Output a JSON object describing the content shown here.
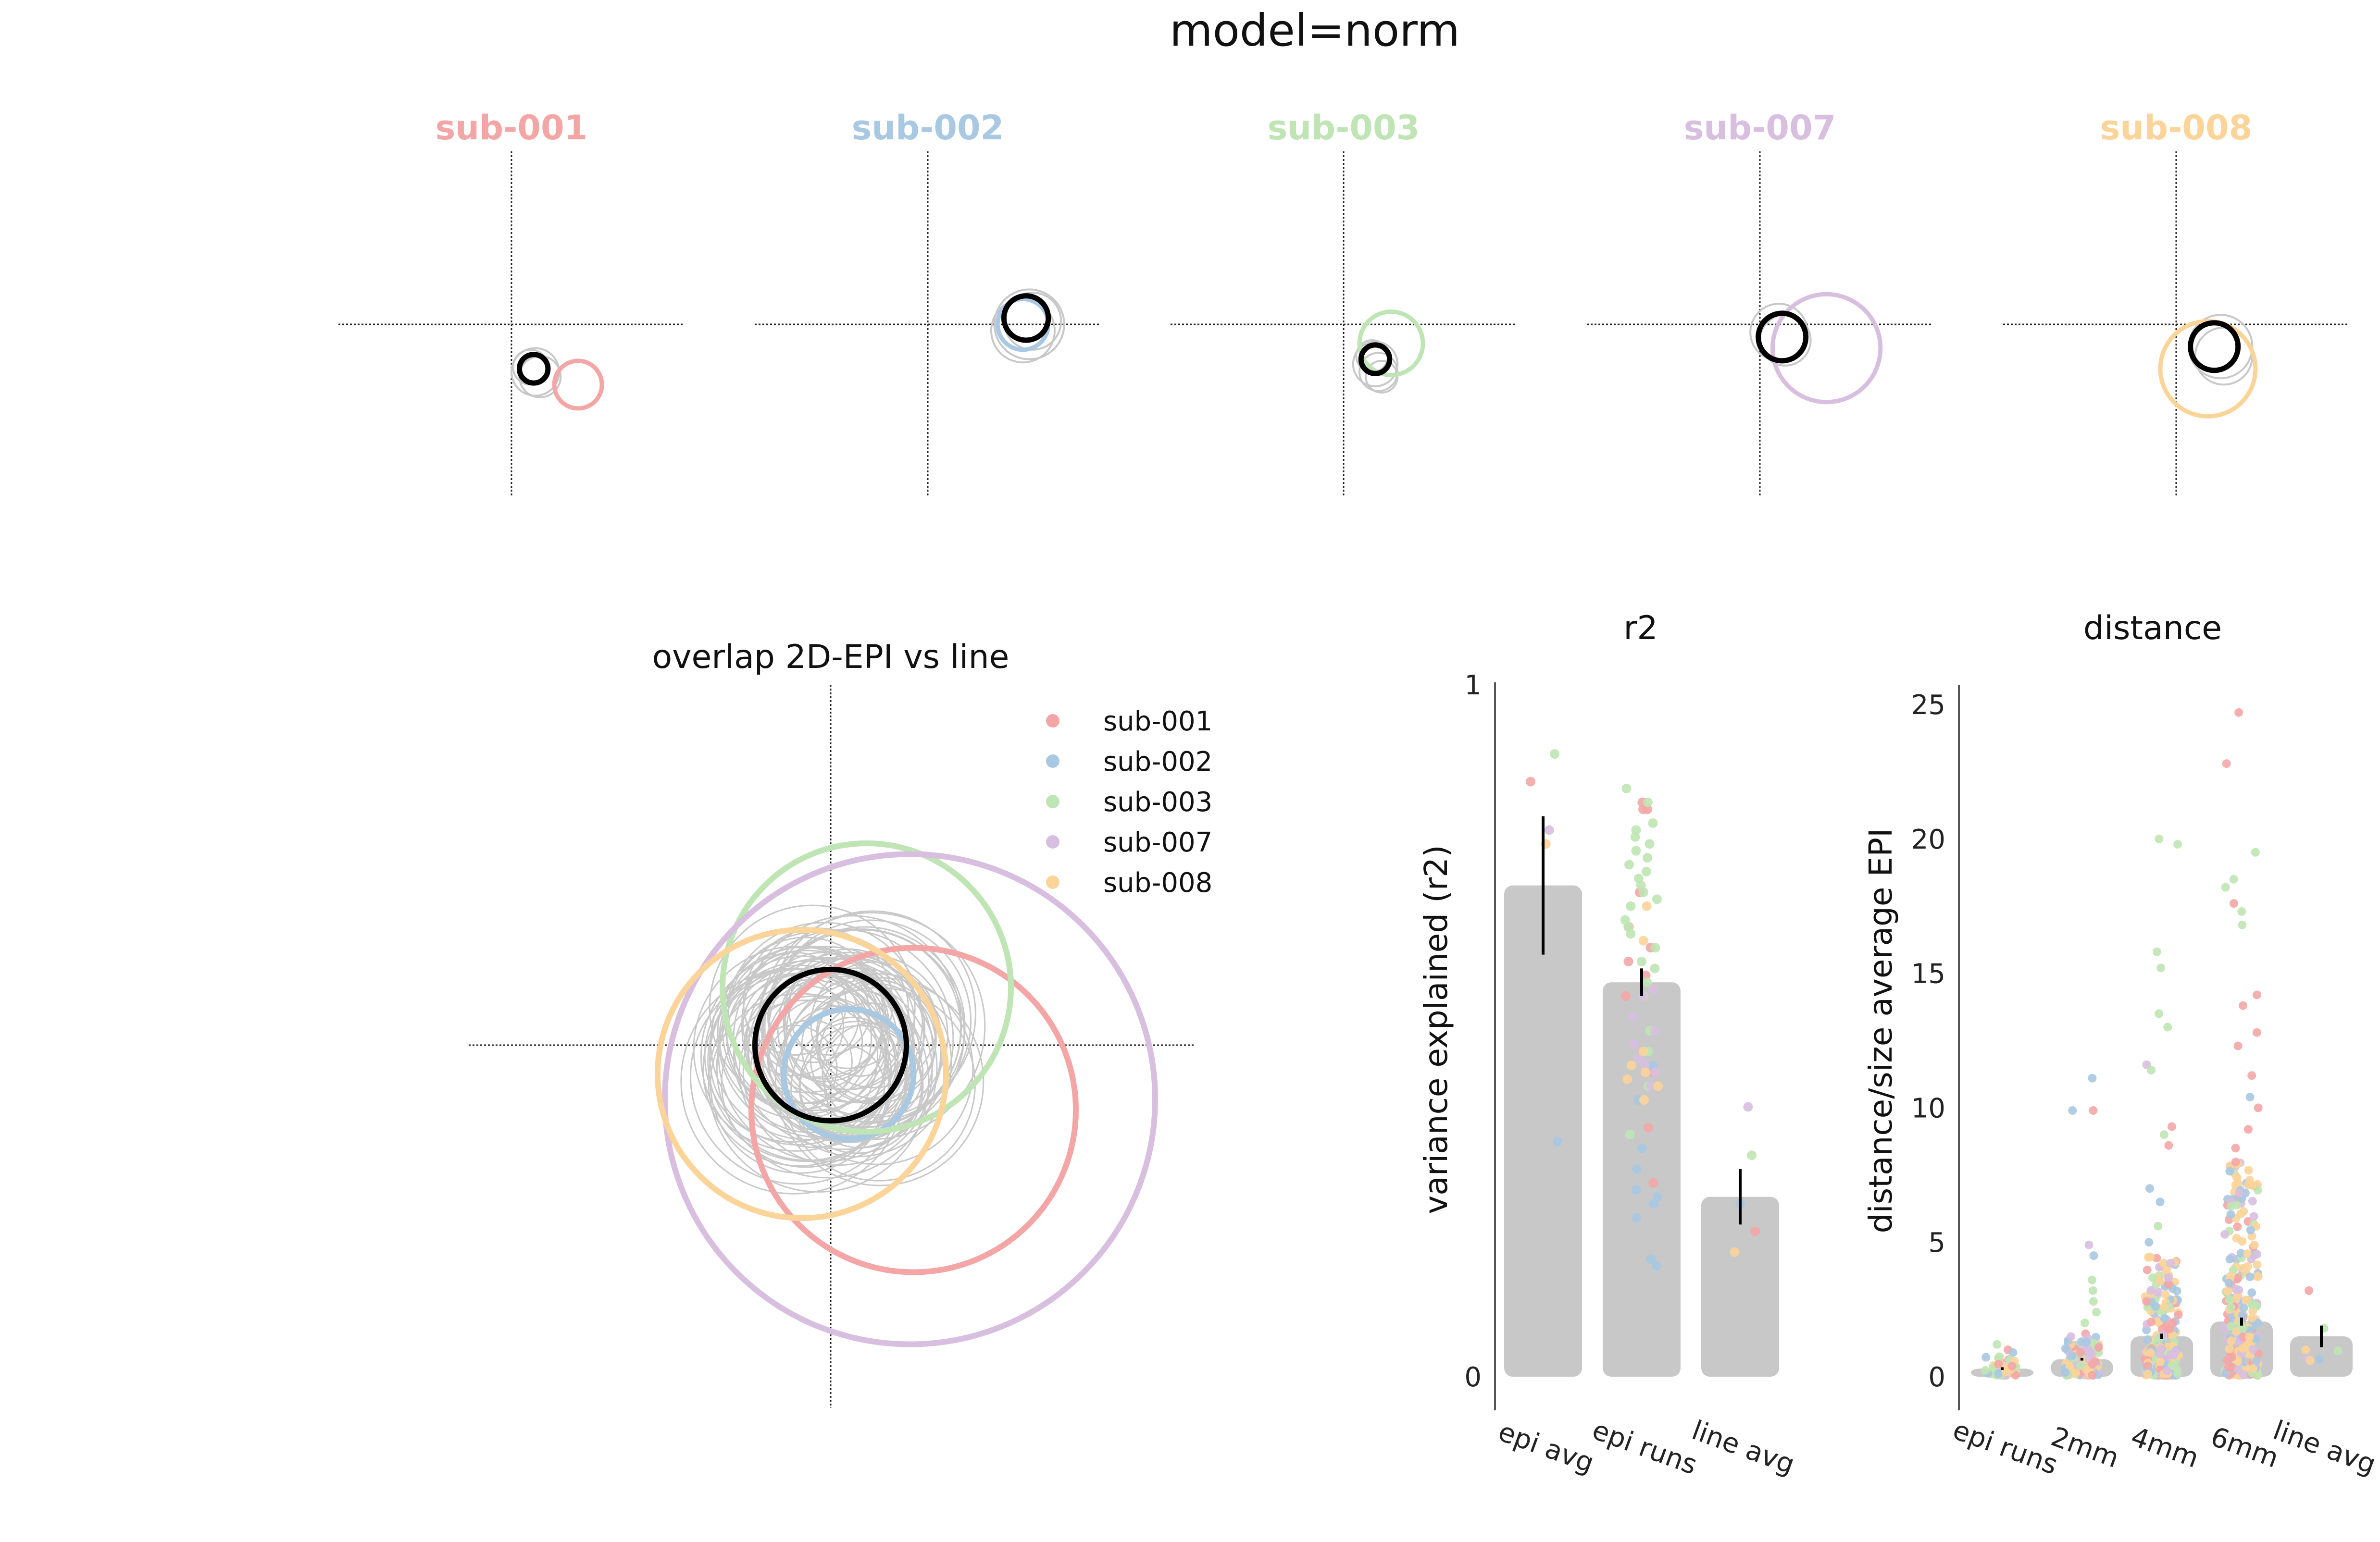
{
  "suptitle": "model=norm",
  "colors": {
    "sub-001": "#f4a6a6",
    "sub-002": "#a9c8e2",
    "sub-003": "#bfe5b4",
    "sub-007": "#d8bfe0",
    "sub-008": "#fbd499",
    "bar": "#c8c8c8",
    "grey_circle": "#c8c8c8",
    "black_circle": "#000000"
  },
  "subjects": [
    {
      "name": "sub-001",
      "color": "#f4a6a6"
    },
    {
      "name": "sub-002",
      "color": "#a9c8e2"
    },
    {
      "name": "sub-003",
      "color": "#bfe5b4"
    },
    {
      "name": "sub-007",
      "color": "#d8bfe0"
    },
    {
      "name": "sub-008",
      "color": "#fbd499"
    }
  ],
  "chart_data": [
    {
      "type": "scatter",
      "description_kind": "prf-circles",
      "panels": [
        {
          "title": "sub-001",
          "color": "#f4a6a6",
          "black": {
            "x": 0.14,
            "y": -0.28,
            "r": 0.09
          },
          "colored": {
            "x": 0.42,
            "y": -0.38,
            "r": 0.15
          },
          "grey": [
            {
              "x": 0.15,
              "y": -0.3,
              "r": 0.15
            },
            {
              "x": 0.18,
              "y": -0.33,
              "r": 0.13
            },
            {
              "x": 0.12,
              "y": -0.27,
              "r": 0.11
            }
          ]
        },
        {
          "title": "sub-002",
          "color": "#a9c8e2",
          "black": {
            "x": 0.62,
            "y": 0.04,
            "r": 0.14
          },
          "colored": {
            "x": 0.6,
            "y": 0.0,
            "r": 0.16
          },
          "grey": [
            {
              "x": 0.64,
              "y": 0.0,
              "r": 0.22
            },
            {
              "x": 0.6,
              "y": -0.04,
              "r": 0.2
            },
            {
              "x": 0.66,
              "y": 0.02,
              "r": 0.18
            }
          ]
        },
        {
          "title": "sub-003",
          "color": "#bfe5b4",
          "black": {
            "x": 0.2,
            "y": -0.22,
            "r": 0.09
          },
          "colored": {
            "x": 0.3,
            "y": -0.12,
            "r": 0.2
          },
          "grey": [
            {
              "x": 0.2,
              "y": -0.25,
              "r": 0.14
            },
            {
              "x": 0.22,
              "y": -0.3,
              "r": 0.12
            },
            {
              "x": 0.18,
              "y": -0.2,
              "r": 0.1
            },
            {
              "x": 0.24,
              "y": -0.33,
              "r": 0.1
            }
          ]
        },
        {
          "title": "sub-007",
          "color": "#d8bfe0",
          "black": {
            "x": 0.14,
            "y": -0.08,
            "r": 0.15
          },
          "colored": {
            "x": 0.42,
            "y": -0.15,
            "r": 0.34
          },
          "grey": [
            {
              "x": 0.12,
              "y": -0.05,
              "r": 0.18
            },
            {
              "x": 0.16,
              "y": -0.1,
              "r": 0.16
            }
          ]
        },
        {
          "title": "sub-008",
          "color": "#fbd499",
          "black": {
            "x": 0.24,
            "y": -0.14,
            "r": 0.15
          },
          "colored": {
            "x": 0.2,
            "y": -0.28,
            "r": 0.3
          },
          "grey": [
            {
              "x": 0.28,
              "y": -0.14,
              "r": 0.2
            },
            {
              "x": 0.3,
              "y": -0.2,
              "r": 0.18
            }
          ]
        }
      ]
    },
    {
      "type": "scatter",
      "title": "overlap 2D-EPI vs line",
      "legend": {
        "placement": "top-right",
        "entries": [
          "sub-001",
          "sub-002",
          "sub-003",
          "sub-007",
          "sub-008"
        ]
      },
      "black": {
        "x": 0.0,
        "y": 0.0,
        "r": 0.21
      },
      "colored": [
        {
          "name": "sub-001",
          "x": 0.23,
          "y": -0.18,
          "r": 0.45
        },
        {
          "name": "sub-002",
          "x": 0.05,
          "y": -0.08,
          "r": 0.18
        },
        {
          "name": "sub-003",
          "x": 0.1,
          "y": 0.16,
          "r": 0.4
        },
        {
          "name": "sub-007",
          "x": 0.22,
          "y": -0.15,
          "r": 0.68
        },
        {
          "name": "sub-008",
          "x": -0.08,
          "y": -0.08,
          "r": 0.4
        }
      ]
    },
    {
      "type": "bar",
      "title": "r2",
      "ylabel": "variance explained (r2)",
      "categories": [
        "epi avg",
        "epi runs",
        "line avg"
      ],
      "values": [
        0.71,
        0.57,
        0.26
      ],
      "errors": [
        0.1,
        0.02,
        0.04
      ],
      "ylim": [
        0,
        1
      ],
      "yticks": [
        "0",
        "1"
      ],
      "points": {
        "epi avg": [
          {
            "name": "sub-001",
            "y": 0.86
          },
          {
            "name": "sub-002",
            "y": 0.34
          },
          {
            "name": "sub-003",
            "y": 0.9
          },
          {
            "name": "sub-007",
            "y": 0.79
          },
          {
            "name": "sub-008",
            "y": 0.77
          }
        ],
        "line avg": [
          {
            "name": "sub-001",
            "y": 0.21
          },
          {
            "name": "sub-002",
            "y": 0.25
          },
          {
            "name": "sub-003",
            "y": 0.32
          },
          {
            "name": "sub-007",
            "y": 0.39
          },
          {
            "name": "sub-008",
            "y": 0.18
          }
        ],
        "epi runs": {
          "sub-001": [
            0.83,
            0.82,
            0.82,
            0.7,
            0.65,
            0.58,
            0.55,
            0.44,
            0.28,
            0.36,
            0.6,
            0.62
          ],
          "sub-002": [
            0.25,
            0.23,
            0.17,
            0.16,
            0.26,
            0.27,
            0.3,
            0.4,
            0.45,
            0.33
          ],
          "sub-003": [
            0.85,
            0.83,
            0.8,
            0.79,
            0.78,
            0.77,
            0.75,
            0.74,
            0.73,
            0.71,
            0.7,
            0.69,
            0.68,
            0.66,
            0.65,
            0.64,
            0.62,
            0.6,
            0.59,
            0.57,
            0.55,
            0.5,
            0.47,
            0.42,
            0.35,
            0.72,
            0.76
          ],
          "sub-007": [
            0.55,
            0.52,
            0.5,
            0.48,
            0.45,
            0.42,
            0.56,
            0.44,
            0.46
          ],
          "sub-008": [
            0.68,
            0.63,
            0.45,
            0.43,
            0.42,
            0.4,
            0.47,
            0.44
          ]
        }
      }
    },
    {
      "type": "bar",
      "title": "distance",
      "ylabel": "distance/size average EPI",
      "categories": [
        "epi runs",
        "2mm",
        "4mm",
        "6mm",
        "line avg"
      ],
      "values": [
        0.3,
        0.65,
        1.5,
        2.05,
        1.5
      ],
      "errors": [
        0.05,
        0.05,
        0.1,
        0.15,
        0.4
      ],
      "ylim": [
        0,
        26
      ],
      "yticks": [
        0,
        5,
        10,
        15,
        20,
        25
      ],
      "points_extremes": {
        "epi runs": [
          {
            "name": "sub-003",
            "y": 1.2
          },
          {
            "name": "sub-001",
            "y": 1.0
          },
          {
            "name": "sub-008",
            "y": 0.5
          }
        ],
        "2mm": [
          {
            "name": "sub-002",
            "y": 11.1
          },
          {
            "name": "sub-002",
            "y": 9.9
          },
          {
            "name": "sub-001",
            "y": 9.9
          },
          {
            "name": "sub-007",
            "y": 4.9
          },
          {
            "name": "sub-002",
            "y": 4.5
          },
          {
            "name": "sub-003",
            "y": 3.6
          },
          {
            "name": "sub-003",
            "y": 3.2
          },
          {
            "name": "sub-003",
            "y": 2.8
          },
          {
            "name": "sub-003",
            "y": 2.4
          },
          {
            "name": "sub-003",
            "y": 2.0
          },
          {
            "name": "sub-001",
            "y": 1.6
          }
        ],
        "4mm": [
          {
            "name": "sub-003",
            "y": 20.0
          },
          {
            "name": "sub-003",
            "y": 19.8
          },
          {
            "name": "sub-003",
            "y": 15.8
          },
          {
            "name": "sub-003",
            "y": 15.2
          },
          {
            "name": "sub-003",
            "y": 13.5
          },
          {
            "name": "sub-003",
            "y": 13.0
          },
          {
            "name": "sub-007",
            "y": 11.6
          },
          {
            "name": "sub-003",
            "y": 11.4
          },
          {
            "name": "sub-001",
            "y": 9.3
          },
          {
            "name": "sub-003",
            "y": 9.0
          },
          {
            "name": "sub-001",
            "y": 8.6
          },
          {
            "name": "sub-002",
            "y": 7.0
          },
          {
            "name": "sub-002",
            "y": 6.5
          },
          {
            "name": "sub-003",
            "y": 5.6
          },
          {
            "name": "sub-002",
            "y": 5.0
          }
        ],
        "6mm": [
          {
            "name": "sub-001",
            "y": 24.7
          },
          {
            "name": "sub-001",
            "y": 22.8
          },
          {
            "name": "sub-003",
            "y": 19.5
          },
          {
            "name": "sub-003",
            "y": 18.5
          },
          {
            "name": "sub-003",
            "y": 18.2
          },
          {
            "name": "sub-001",
            "y": 17.6
          },
          {
            "name": "sub-003",
            "y": 17.3
          },
          {
            "name": "sub-003",
            "y": 16.8
          },
          {
            "name": "sub-001",
            "y": 14.2
          },
          {
            "name": "sub-001",
            "y": 13.8
          },
          {
            "name": "sub-001",
            "y": 12.8
          },
          {
            "name": "sub-001",
            "y": 12.3
          },
          {
            "name": "sub-001",
            "y": 11.2
          },
          {
            "name": "sub-002",
            "y": 10.4
          },
          {
            "name": "sub-001",
            "y": 10.0
          },
          {
            "name": "sub-001",
            "y": 9.2
          },
          {
            "name": "sub-001",
            "y": 8.5
          },
          {
            "name": "sub-001",
            "y": 7.8
          },
          {
            "name": "sub-002",
            "y": 7.2
          },
          {
            "name": "sub-002",
            "y": 6.6
          }
        ],
        "line avg": [
          {
            "name": "sub-001",
            "y": 3.2
          },
          {
            "name": "sub-003",
            "y": 1.8
          },
          {
            "name": "sub-008",
            "y": 1.0
          }
        ]
      }
    }
  ]
}
